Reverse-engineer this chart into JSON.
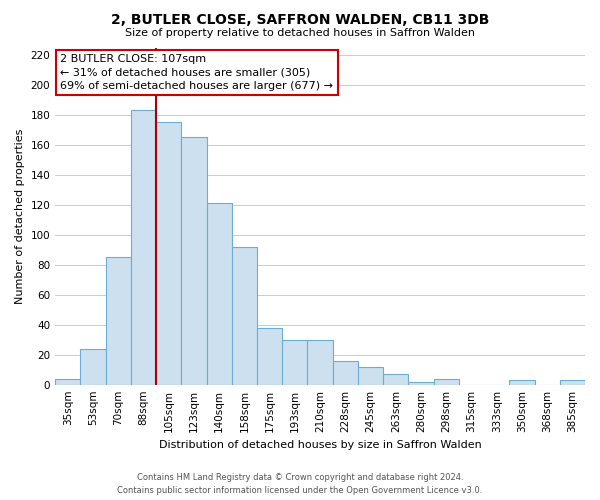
{
  "title": "2, BUTLER CLOSE, SAFFRON WALDEN, CB11 3DB",
  "subtitle": "Size of property relative to detached houses in Saffron Walden",
  "xlabel": "Distribution of detached houses by size in Saffron Walden",
  "ylabel": "Number of detached properties",
  "bar_labels": [
    "35sqm",
    "53sqm",
    "70sqm",
    "88sqm",
    "105sqm",
    "123sqm",
    "140sqm",
    "158sqm",
    "175sqm",
    "193sqm",
    "210sqm",
    "228sqm",
    "245sqm",
    "263sqm",
    "280sqm",
    "298sqm",
    "315sqm",
    "333sqm",
    "350sqm",
    "368sqm",
    "385sqm"
  ],
  "bar_values": [
    4,
    24,
    85,
    183,
    175,
    165,
    121,
    92,
    38,
    30,
    30,
    16,
    12,
    7,
    2,
    4,
    0,
    0,
    3,
    0,
    3
  ],
  "bar_color": "#cde0f0",
  "bar_edge_color": "#6aaed6",
  "highlight_line_color": "#aa0000",
  "highlight_bar_index": 4,
  "annotation_text_line1": "2 BUTLER CLOSE: 107sqm",
  "annotation_text_line2": "← 31% of detached houses are smaller (305)",
  "annotation_text_line3": "69% of semi-detached houses are larger (677) →",
  "annotation_box_color": "#ffffff",
  "annotation_box_edge_color": "#cc0000",
  "ylim": [
    0,
    225
  ],
  "yticks": [
    0,
    20,
    40,
    60,
    80,
    100,
    120,
    140,
    160,
    180,
    200,
    220
  ],
  "footer_line1": "Contains HM Land Registry data © Crown copyright and database right 2024.",
  "footer_line2": "Contains public sector information licensed under the Open Government Licence v3.0.",
  "background_color": "#ffffff",
  "grid_color": "#cccccc",
  "title_fontsize": 10,
  "subtitle_fontsize": 8,
  "axis_label_fontsize": 8,
  "tick_fontsize": 7.5
}
